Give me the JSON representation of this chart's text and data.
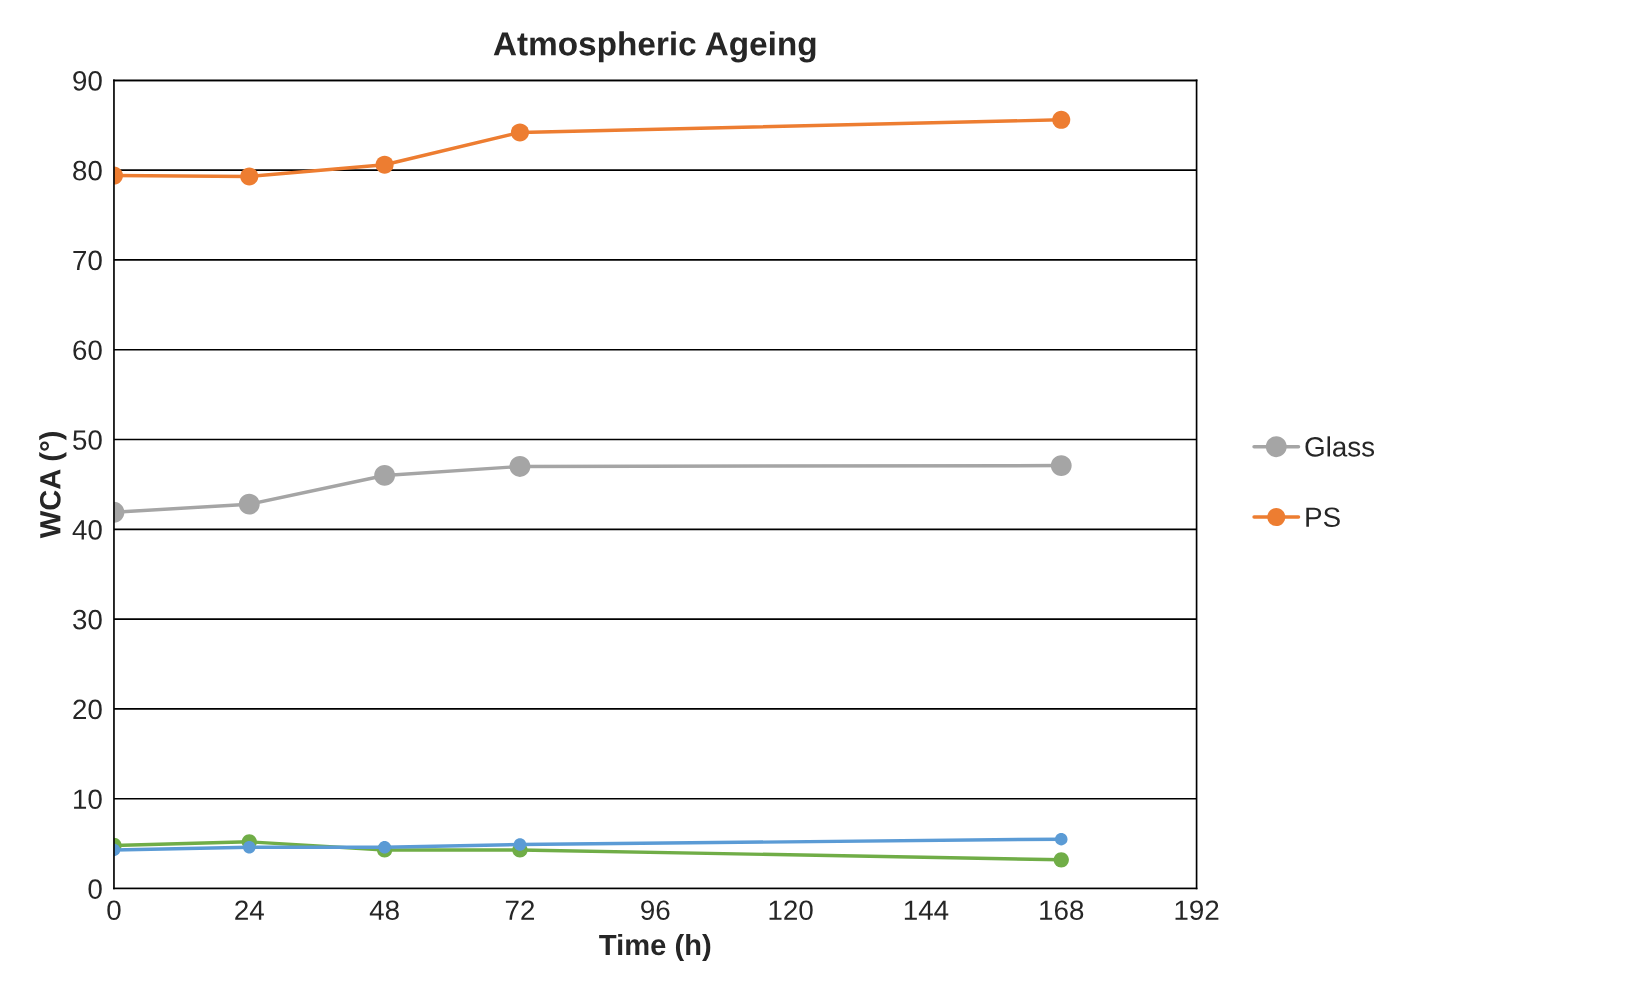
{
  "chart_data": {
    "type": "line",
    "title": "Atmospheric Ageing",
    "xlabel": "Time (h)",
    "ylabel": "WCA (°)",
    "x": [
      0,
      24,
      48,
      72,
      168
    ],
    "series": [
      {
        "name": "Glass",
        "color": "#a5a5a5",
        "values": [
          41.9,
          42.8,
          46.0,
          47.0,
          47.1
        ]
      },
      {
        "name": "PS",
        "color": "#ed7d31",
        "values": [
          79.4,
          79.3,
          80.6,
          84.2,
          85.6
        ]
      },
      {
        "color": "#70ad47",
        "values": [
          4.8,
          5.2,
          4.3,
          4.3,
          3.2
        ]
      },
      {
        "color": "#5b9bd5",
        "values": [
          4.3,
          4.6,
          4.6,
          4.9,
          5.5
        ]
      }
    ],
    "xlim": [
      0,
      192
    ],
    "xticks": [
      0,
      24,
      48,
      72,
      96,
      120,
      144,
      168,
      192
    ],
    "ylim": [
      0,
      90
    ],
    "yticks": [
      0,
      10,
      20,
      30,
      40,
      50,
      60,
      70,
      80,
      90
    ],
    "grid": "y",
    "legend": "right",
    "marker": "circle",
    "line_style": "solid"
  }
}
